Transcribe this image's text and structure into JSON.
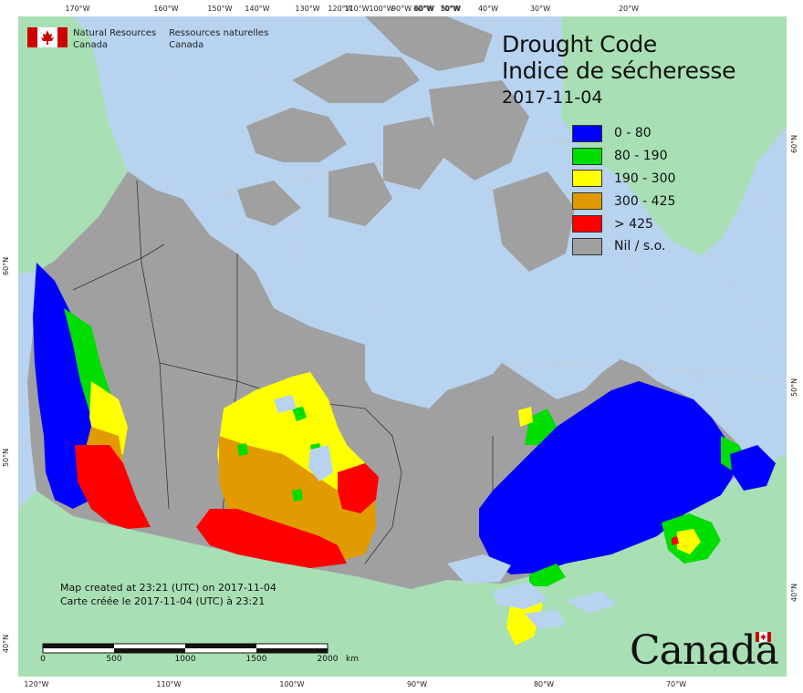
{
  "map_title": {
    "english": "Drought Code",
    "french": "Indice de sécheresse",
    "date": "2017-11-04"
  },
  "agency": {
    "english_line1": "Natural Resources",
    "english_line2": "Canada",
    "french_line1": "Ressources naturelles",
    "french_line2": "Canada"
  },
  "legend": [
    {
      "label": "0 - 80",
      "color": "#0000ff"
    },
    {
      "label": "80 - 190",
      "color": "#00dd00"
    },
    {
      "label": "190 - 300",
      "color": "#ffff00"
    },
    {
      "label": "300 - 425",
      "color": "#e19b00"
    },
    {
      "label": "> 425",
      "color": "#ff0000"
    },
    {
      "label": "Nil / s.o.",
      "color": "#a0a0a0"
    }
  ],
  "creation_note": {
    "english": "Map created at 23:21 (UTC) on 2017-11-04",
    "french": "Carte créée le 2017-11-04 (UTC) à 23:21"
  },
  "scale_bar": {
    "labels": [
      "0",
      "500",
      "1000",
      "1500",
      "2000"
    ],
    "unit": "km"
  },
  "graticule": {
    "top": [
      "170°W",
      "160°W",
      "150°W",
      "140°W",
      "130°W",
      "120°W",
      "110°W",
      "100°W",
      "90°W",
      "80°W",
      "70°W",
      "60°W",
      "50°W",
      "40°W",
      "30°W",
      "20°W"
    ],
    "bottom": [
      "120°W",
      "110°W",
      "100°W",
      "90°W",
      "80°W",
      "70°W"
    ],
    "left": [
      "60°N",
      "50°N",
      "40°N"
    ],
    "right": [
      "60°N",
      "50°N",
      "40°N"
    ]
  },
  "wordmark": "Canada",
  "colors": {
    "ocean": "#b7d3f0",
    "foreign_land": "#a8dfb4",
    "nil": "#a0a0a0",
    "lake": "#b7d3f0"
  }
}
